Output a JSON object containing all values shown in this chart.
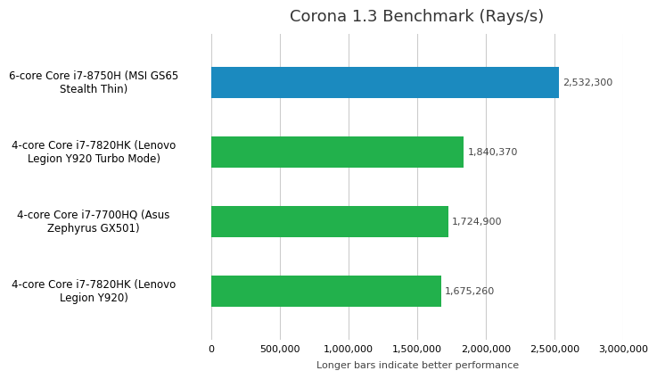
{
  "title": "Corona 1.3 Benchmark (Rays/s)",
  "xlabel": "Longer bars indicate better performance",
  "categories": [
    "4-core Core i7-7820HK (Lenovo\nLegion Y920)",
    "4-core Core i7-7700HQ (Asus\nZephyrus GX501)",
    "4-core Core i7-7820HK (Lenovo\nLegion Y920 Turbo Mode)",
    "6-core Core i7-8750H (MSI GS65\nStealth Thin)"
  ],
  "values": [
    1675260,
    1724900,
    1840370,
    2532300
  ],
  "bar_colors": [
    "#22b14c",
    "#22b14c",
    "#22b14c",
    "#1b8abf"
  ],
  "value_labels": [
    "1,675,260",
    "1,724,900",
    "1,840,370",
    "2,532,300"
  ],
  "xlim": [
    0,
    3000000
  ],
  "xticks": [
    0,
    500000,
    1000000,
    1500000,
    2000000,
    2500000,
    3000000
  ],
  "xtick_labels": [
    "0",
    "500,000",
    "1,000,000",
    "1,500,000",
    "2,000,000",
    "2,500,000",
    "3,000,000"
  ],
  "background_color": "#ffffff",
  "plot_bg_color": "#ffffff",
  "grid_color": "#cccccc",
  "bar_height": 0.45,
  "title_fontsize": 13,
  "label_fontsize": 8.5,
  "tick_fontsize": 8,
  "value_fontsize": 8,
  "xlabel_fontsize": 8
}
